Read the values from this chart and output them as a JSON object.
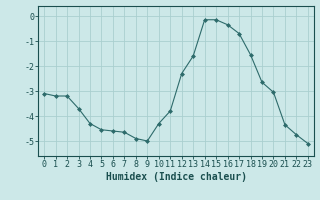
{
  "xlabel": "Humidex (Indice chaleur)",
  "x_values": [
    0,
    1,
    2,
    3,
    4,
    5,
    6,
    7,
    8,
    9,
    10,
    11,
    12,
    13,
    14,
    15,
    16,
    17,
    18,
    19,
    20,
    21,
    22,
    23
  ],
  "y_values": [
    -3.1,
    -3.2,
    -3.2,
    -3.7,
    -4.3,
    -4.55,
    -4.6,
    -4.65,
    -4.9,
    -5.0,
    -4.3,
    -3.8,
    -2.3,
    -1.6,
    -0.15,
    -0.15,
    -0.35,
    -0.7,
    -1.55,
    -2.65,
    -3.05,
    -4.35,
    -4.75,
    -5.1
  ],
  "line_color": "#2d6b6b",
  "marker": "D",
  "marker_size": 2,
  "background_color": "#cce8e8",
  "grid_color": "#aacfcf",
  "xlim": [
    -0.5,
    23.5
  ],
  "ylim": [
    -5.6,
    0.4
  ],
  "yticks": [
    0,
    -1,
    -2,
    -3,
    -4,
    -5
  ],
  "xticks": [
    0,
    1,
    2,
    3,
    4,
    5,
    6,
    7,
    8,
    9,
    10,
    11,
    12,
    13,
    14,
    15,
    16,
    17,
    18,
    19,
    20,
    21,
    22,
    23
  ],
  "tick_color": "#1a4f4f",
  "label_fontsize": 7,
  "tick_fontsize": 6
}
